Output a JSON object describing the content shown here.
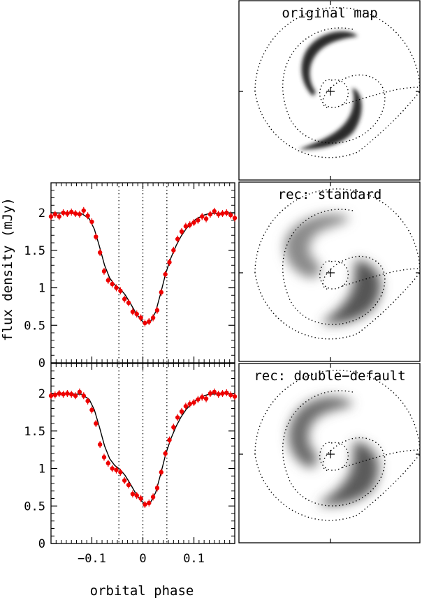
{
  "figure": {
    "ylabel": "flux density (mJy)",
    "xlabel": "orbital phase"
  },
  "chart_data": [
    {
      "type": "scatter",
      "panel": "light-curve-top",
      "xlim": [
        -0.18,
        0.18
      ],
      "ylim": [
        0,
        2.4
      ],
      "xticks": [
        -0.1,
        0,
        0.1
      ],
      "xtick_labels": [
        "−0.1",
        "0",
        "0.1"
      ],
      "yticks": [
        0,
        0.5,
        1,
        1.5,
        2
      ],
      "ytick_labels": [
        "0",
        "0.5",
        "1",
        "1.5",
        "2"
      ],
      "vlines": [
        -0.047,
        0,
        0.047
      ],
      "series": [
        {
          "color": "#ee0000",
          "x": [
            -0.18,
            -0.172,
            -0.164,
            -0.156,
            -0.148,
            -0.14,
            -0.132,
            -0.124,
            -0.116,
            -0.108,
            -0.1,
            -0.092,
            -0.084,
            -0.076,
            -0.068,
            -0.06,
            -0.052,
            -0.044,
            -0.036,
            -0.028,
            -0.02,
            -0.012,
            -0.004,
            0.004,
            0.012,
            0.02,
            0.028,
            0.036,
            0.044,
            0.052,
            0.06,
            0.068,
            0.076,
            0.084,
            0.092,
            0.1,
            0.108,
            0.116,
            0.124,
            0.132,
            0.14,
            0.148,
            0.156,
            0.164,
            0.172,
            0.18
          ],
          "y": [
            1.95,
            1.98,
            1.95,
            2.0,
            1.99,
            2.01,
            1.99,
            1.98,
            2.03,
            1.96,
            1.88,
            1.68,
            1.47,
            1.22,
            1.1,
            1.05,
            1.0,
            0.96,
            0.85,
            0.8,
            0.68,
            0.65,
            0.6,
            0.53,
            0.55,
            0.6,
            0.7,
            0.94,
            1.18,
            1.34,
            1.5,
            1.65,
            1.75,
            1.82,
            1.84,
            1.87,
            1.9,
            1.95,
            1.92,
            1.98,
            2.02,
            1.98,
            1.99,
            2.0,
            1.97,
            1.93
          ]
        },
        {
          "type": "line",
          "color": "#000000",
          "x": [
            -0.18,
            -0.12,
            -0.105,
            -0.095,
            -0.085,
            -0.075,
            -0.065,
            -0.055,
            -0.045,
            -0.035,
            -0.025,
            -0.015,
            -0.005,
            0.005,
            0.015,
            0.025,
            0.035,
            0.045,
            0.055,
            0.065,
            0.075,
            0.085,
            0.095,
            0.105,
            0.12,
            0.13,
            0.18
          ],
          "y": [
            2.0,
            1.99,
            1.92,
            1.78,
            1.55,
            1.3,
            1.13,
            1.04,
            0.99,
            0.91,
            0.8,
            0.68,
            0.58,
            0.52,
            0.55,
            0.68,
            0.93,
            1.2,
            1.4,
            1.56,
            1.69,
            1.79,
            1.86,
            1.92,
            1.97,
            1.99,
            2.0
          ]
        }
      ]
    },
    {
      "type": "scatter",
      "panel": "light-curve-bottom",
      "xlim": [
        -0.18,
        0.18
      ],
      "ylim": [
        0,
        2.4
      ],
      "xticks": [
        -0.1,
        0,
        0.1
      ],
      "xtick_labels": [
        "−0.1",
        "0",
        "0.1"
      ],
      "yticks": [
        0,
        0.5,
        1,
        1.5,
        2
      ],
      "ytick_labels": [
        "0",
        "0.5",
        "1",
        "1.5",
        "2"
      ],
      "vlines": [
        -0.047,
        0,
        0.047
      ],
      "series": [
        {
          "color": "#ee0000",
          "x": [
            -0.18,
            -0.172,
            -0.164,
            -0.156,
            -0.148,
            -0.14,
            -0.132,
            -0.124,
            -0.116,
            -0.108,
            -0.1,
            -0.092,
            -0.084,
            -0.076,
            -0.068,
            -0.06,
            -0.052,
            -0.044,
            -0.036,
            -0.028,
            -0.02,
            -0.012,
            -0.004,
            0.004,
            0.012,
            0.02,
            0.028,
            0.036,
            0.044,
            0.052,
            0.06,
            0.068,
            0.076,
            0.084,
            0.092,
            0.1,
            0.108,
            0.116,
            0.124,
            0.132,
            0.14,
            0.148,
            0.156,
            0.164,
            0.172,
            0.18
          ],
          "y": [
            1.97,
            1.98,
            2.0,
            1.99,
            2.0,
            1.99,
            1.97,
            2.02,
            1.97,
            1.9,
            1.78,
            1.6,
            1.32,
            1.15,
            1.07,
            1.0,
            0.98,
            0.95,
            0.84,
            0.78,
            0.66,
            0.64,
            0.6,
            0.52,
            0.54,
            0.62,
            0.74,
            0.95,
            1.2,
            1.38,
            1.55,
            1.68,
            1.76,
            1.83,
            1.86,
            1.88,
            1.92,
            1.95,
            1.93,
            2.0,
            2.02,
            1.99,
            2.0,
            2.01,
            1.98,
            1.96
          ]
        },
        {
          "type": "line",
          "color": "#000000",
          "x": [
            -0.18,
            -0.12,
            -0.105,
            -0.095,
            -0.085,
            -0.075,
            -0.065,
            -0.055,
            -0.045,
            -0.035,
            -0.025,
            -0.015,
            -0.005,
            0.005,
            0.015,
            0.025,
            0.035,
            0.045,
            0.055,
            0.065,
            0.075,
            0.085,
            0.095,
            0.105,
            0.12,
            0.13,
            0.18
          ],
          "y": [
            2.0,
            1.99,
            1.92,
            1.78,
            1.55,
            1.3,
            1.13,
            1.04,
            0.99,
            0.91,
            0.8,
            0.68,
            0.58,
            0.52,
            0.55,
            0.68,
            0.93,
            1.2,
            1.4,
            1.56,
            1.69,
            1.79,
            1.86,
            1.92,
            1.97,
            1.99,
            2.0
          ]
        }
      ]
    },
    {
      "type": "heatmap",
      "panel": "map-original",
      "title": "original map",
      "colormap": "greyscale",
      "overlay": "dotted Roche lobe and stream outlines, center marked with +"
    },
    {
      "type": "heatmap",
      "panel": "map-standard",
      "title": "rec: standard",
      "colormap": "greyscale",
      "overlay": "dotted Roche lobe and stream outlines, center marked with +"
    },
    {
      "type": "heatmap",
      "panel": "map-double-default",
      "title": "rec: double−default",
      "colormap": "greyscale",
      "overlay": "dotted Roche lobe and stream outlines, center marked with +"
    }
  ]
}
